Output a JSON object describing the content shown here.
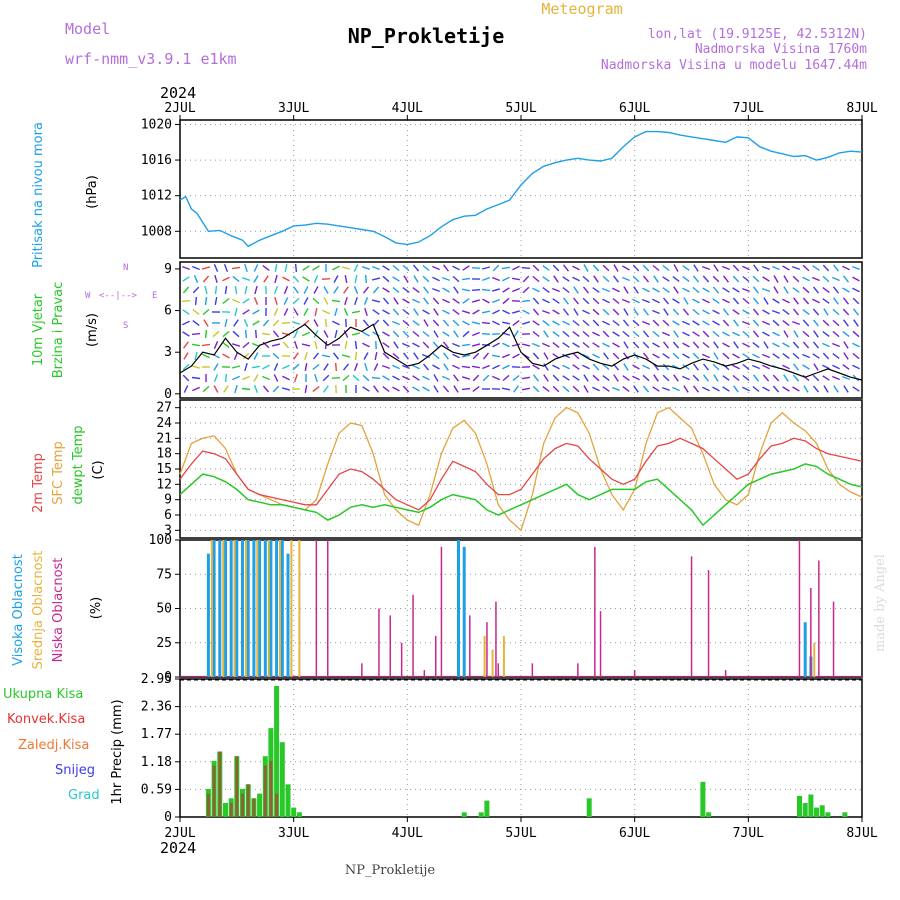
{
  "header": {
    "model_label": "Model",
    "model_name": "wrf-nmm_v3.9.1 e1km",
    "title": "NP_Prokletije",
    "meteogram_label": "Meteogram",
    "location": "lon,lat (19.9125E, 42.5312N)",
    "altitude": "Nadmorska Visina 1760m",
    "model_altitude": "Nadmorska Visina u modelu 1647.44m",
    "year_top": "2024",
    "year_bottom": "2024",
    "footer": "NP_Prokletije",
    "credit": "made by Angel"
  },
  "colors": {
    "pressure": "#1ea0e6",
    "temp2m": "#e64646",
    "sfc": "#e6a23c",
    "dew": "#28c828",
    "high_cloud": "#1ea0e6",
    "mid_cloud": "#e6b43c",
    "low_cloud": "#c8288c",
    "total_precip": "#28c828",
    "conv_precip": "#e63232",
    "frz_precip": "#f07832",
    "snow": "#3c3ce6",
    "hail": "#28c8c8",
    "wind_speed": "#000000"
  },
  "chart_data": [
    {
      "type": "line",
      "id": "pressure",
      "ylabel": "(hPa)",
      "side_labels": [
        "Pritisak na nivou mora"
      ],
      "categories": [
        "2JUL",
        "3JUL",
        "4JUL",
        "5JUL",
        "6JUL",
        "7JUL",
        "8JUL"
      ],
      "yticks": [
        "1008",
        "1012",
        "1016",
        "1020"
      ],
      "ylim": [
        1005,
        1020.5
      ],
      "grid": true,
      "series": [
        {
          "x": [
            0,
            0.05,
            0.1,
            0.15,
            0.25,
            0.35,
            0.45,
            0.55,
            0.6,
            0.7,
            0.8,
            0.9,
            1.0,
            1.1,
            1.2,
            1.3,
            1.4,
            1.5,
            1.6,
            1.7,
            1.8,
            1.9,
            2.0,
            2.1,
            2.2,
            2.3,
            2.4,
            2.5,
            2.6,
            2.7,
            2.8,
            2.9,
            3.0,
            3.1,
            3.2,
            3.3,
            3.4,
            3.5,
            3.6,
            3.7,
            3.8,
            3.9,
            4.0,
            4.1,
            4.2,
            4.3,
            4.4,
            4.5,
            4.6,
            4.7,
            4.8,
            4.9,
            5.0,
            5.1,
            5.2,
            5.3,
            5.4,
            5.5,
            5.6,
            5.7,
            5.8,
            5.9,
            6.0
          ],
          "values": [
            1011.5,
            1011.9,
            1010.5,
            1010.0,
            1008.0,
            1008.1,
            1007.5,
            1007.0,
            1006.3,
            1007.0,
            1007.5,
            1008.0,
            1008.6,
            1008.7,
            1008.9,
            1008.8,
            1008.6,
            1008.4,
            1008.2,
            1008.0,
            1007.4,
            1006.7,
            1006.5,
            1006.8,
            1007.5,
            1008.5,
            1009.3,
            1009.7,
            1009.8,
            1010.5,
            1011.0,
            1011.5,
            1013.2,
            1014.5,
            1015.3,
            1015.7,
            1016.0,
            1016.2,
            1016.0,
            1015.9,
            1016.2,
            1017.5,
            1018.6,
            1019.2,
            1019.2,
            1019.1,
            1018.8,
            1018.6,
            1018.4,
            1018.2,
            1018.0,
            1018.6,
            1018.5,
            1017.5,
            1017.0,
            1016.7,
            1016.4,
            1016.5,
            1016.0,
            1016.3,
            1016.8,
            1017.0,
            1016.9
          ]
        }
      ]
    },
    {
      "type": "line",
      "id": "wind",
      "ylabel": "(m/s)",
      "side_labels": [
        "10m Vjetar",
        "Brzina i Pravac"
      ],
      "compass": [
        "N",
        "S",
        "W",
        "E",
        "<--|-->"
      ],
      "yticks": [
        "0",
        "3",
        "6",
        "9"
      ],
      "ylim": [
        -0.3,
        9.5
      ],
      "series": [
        {
          "name": "speed",
          "x": [
            0,
            0.1,
            0.2,
            0.3,
            0.4,
            0.5,
            0.6,
            0.7,
            0.8,
            0.9,
            1.0,
            1.1,
            1.2,
            1.3,
            1.4,
            1.5,
            1.6,
            1.7,
            1.8,
            1.9,
            2.0,
            2.1,
            2.2,
            2.3,
            2.4,
            2.5,
            2.6,
            2.7,
            2.8,
            2.9,
            3.0,
            3.1,
            3.2,
            3.3,
            3.4,
            3.5,
            3.6,
            3.7,
            3.8,
            3.9,
            4.0,
            4.1,
            4.2,
            4.3,
            4.4,
            4.5,
            4.6,
            4.7,
            4.8,
            4.9,
            5.0,
            5.1,
            5.2,
            5.3,
            5.4,
            5.5,
            5.6,
            5.7,
            5.8,
            5.9,
            6.0
          ],
          "values": [
            1.5,
            2.0,
            3.0,
            2.8,
            4.0,
            3.0,
            2.5,
            3.5,
            3.8,
            4.0,
            4.5,
            5.0,
            4.2,
            3.5,
            4.0,
            4.8,
            4.5,
            5.0,
            3.0,
            2.5,
            2.0,
            2.2,
            2.8,
            3.5,
            3.0,
            2.8,
            3.0,
            3.5,
            4.0,
            4.8,
            3.0,
            2.2,
            2.0,
            2.5,
            2.8,
            3.0,
            2.5,
            2.2,
            2.0,
            2.5,
            2.8,
            2.5,
            2.0,
            2.0,
            1.8,
            2.2,
            2.5,
            2.3,
            2.0,
            2.2,
            2.5,
            2.3,
            2.0,
            1.8,
            1.5,
            1.2,
            1.5,
            1.8,
            1.5,
            1.2,
            1.0
          ]
        }
      ]
    },
    {
      "type": "line",
      "id": "temperature",
      "ylabel": "(C)",
      "side_labels": [
        "2m Temp",
        "SFC Temp",
        "dewpt Temp"
      ],
      "yticks": [
        "3",
        "6",
        "9",
        "12",
        "15",
        "18",
        "21",
        "24",
        "27"
      ],
      "ylim": [
        1.5,
        28.5
      ],
      "grid": true,
      "series": [
        {
          "name": "2m Temp",
          "x": [
            0,
            0.1,
            0.2,
            0.3,
            0.4,
            0.5,
            0.6,
            0.7,
            0.8,
            0.9,
            1.0,
            1.1,
            1.2,
            1.3,
            1.4,
            1.5,
            1.6,
            1.7,
            1.8,
            1.9,
            2.0,
            2.1,
            2.2,
            2.3,
            2.4,
            2.5,
            2.6,
            2.7,
            2.8,
            2.9,
            3.0,
            3.1,
            3.2,
            3.3,
            3.4,
            3.5,
            3.6,
            3.7,
            3.8,
            3.9,
            4.0,
            4.1,
            4.2,
            4.3,
            4.4,
            4.5,
            4.6,
            4.7,
            4.8,
            4.9,
            5.0,
            5.1,
            5.2,
            5.3,
            5.4,
            5.5,
            5.6,
            5.7,
            5.8,
            5.9,
            6.0
          ],
          "values": [
            13.0,
            16.0,
            18.5,
            18.0,
            17.0,
            14.0,
            11.0,
            10.0,
            9.5,
            9.0,
            8.5,
            8.0,
            8.0,
            11.0,
            14.0,
            15.0,
            14.5,
            13.0,
            11.0,
            9.0,
            8.0,
            7.0,
            9.0,
            13.0,
            16.5,
            15.5,
            14.5,
            12.0,
            10.0,
            10.0,
            11.0,
            14.0,
            17.0,
            19.0,
            20.0,
            19.5,
            17.0,
            15.0,
            13.0,
            12.0,
            13.0,
            16.5,
            19.5,
            20.0,
            21.0,
            20.0,
            19.0,
            17.0,
            15.0,
            13.0,
            14.0,
            17.0,
            19.5,
            20.0,
            21.0,
            20.5,
            19.0,
            18.0,
            17.5,
            17.0,
            16.5
          ]
        },
        {
          "name": "SFC Temp",
          "x": [
            0,
            0.1,
            0.2,
            0.3,
            0.4,
            0.5,
            0.6,
            0.7,
            0.8,
            0.9,
            1.0,
            1.1,
            1.2,
            1.3,
            1.4,
            1.5,
            1.6,
            1.7,
            1.8,
            1.9,
            2.0,
            2.1,
            2.2,
            2.3,
            2.4,
            2.5,
            2.6,
            2.7,
            2.8,
            2.9,
            3.0,
            3.1,
            3.2,
            3.3,
            3.4,
            3.5,
            3.6,
            3.7,
            3.8,
            3.9,
            4.0,
            4.1,
            4.2,
            4.3,
            4.4,
            4.5,
            4.6,
            4.7,
            4.8,
            4.9,
            5.0,
            5.1,
            5.2,
            5.3,
            5.4,
            5.5,
            5.6,
            5.7,
            5.8,
            5.9,
            6.0
          ],
          "values": [
            14.0,
            20.0,
            21.0,
            21.5,
            19.0,
            14.0,
            11.0,
            10.0,
            9.0,
            8.0,
            7.5,
            7.0,
            9.0,
            16.0,
            22.0,
            24.0,
            23.5,
            18.0,
            10.0,
            7.0,
            5.0,
            4.0,
            10.0,
            18.0,
            23.0,
            24.5,
            22.0,
            16.0,
            8.0,
            5.0,
            3.0,
            10.0,
            20.0,
            25.0,
            27.0,
            26.0,
            22.0,
            15.0,
            10.0,
            7.0,
            11.0,
            20.0,
            26.0,
            27.0,
            25.0,
            23.0,
            18.0,
            12.0,
            9.0,
            8.0,
            10.0,
            18.0,
            24.0,
            26.0,
            24.0,
            22.5,
            20.0,
            15.0,
            12.0,
            10.5,
            9.5
          ]
        },
        {
          "name": "dewpt Temp",
          "x": [
            0,
            0.1,
            0.2,
            0.3,
            0.4,
            0.5,
            0.6,
            0.7,
            0.8,
            0.9,
            1.0,
            1.1,
            1.2,
            1.3,
            1.4,
            1.5,
            1.6,
            1.7,
            1.8,
            1.9,
            2.0,
            2.1,
            2.2,
            2.3,
            2.4,
            2.5,
            2.6,
            2.7,
            2.8,
            2.9,
            3.0,
            3.1,
            3.2,
            3.3,
            3.4,
            3.5,
            3.6,
            3.7,
            3.8,
            3.9,
            4.0,
            4.1,
            4.2,
            4.3,
            4.4,
            4.5,
            4.6,
            4.7,
            4.8,
            4.9,
            5.0,
            5.1,
            5.2,
            5.3,
            5.4,
            5.5,
            5.6,
            5.7,
            5.8,
            5.9,
            6.0
          ],
          "values": [
            10.0,
            12.0,
            14.0,
            13.5,
            12.5,
            11.0,
            9.0,
            8.5,
            8.0,
            8.0,
            7.5,
            7.0,
            6.5,
            5.0,
            6.0,
            7.5,
            8.0,
            7.5,
            8.0,
            7.5,
            7.0,
            6.5,
            7.5,
            9.0,
            10.0,
            9.5,
            9.0,
            7.0,
            6.0,
            7.0,
            8.0,
            9.0,
            10.0,
            11.0,
            12.0,
            10.0,
            9.0,
            10.0,
            11.0,
            11.0,
            11.0,
            12.5,
            13.0,
            11.0,
            9.0,
            7.0,
            4.0,
            6.0,
            8.0,
            10.0,
            12.0,
            13.0,
            14.0,
            14.5,
            15.0,
            16.0,
            15.5,
            14.0,
            13.0,
            12.0,
            11.5
          ]
        }
      ]
    },
    {
      "type": "bar",
      "id": "clouds",
      "ylabel": "(%)",
      "side_labels": [
        "Visoka Oblacnost",
        "Srednja Oblacnost",
        "Niska Oblacnost"
      ],
      "yticks": [
        "0",
        "25",
        "50",
        "75",
        "100"
      ],
      "ylim": [
        0,
        100
      ],
      "grid": true,
      "series": [
        {
          "name": "Visoka Oblacnost",
          "x": [
            0.25,
            0.3,
            0.35,
            0.4,
            0.45,
            0.5,
            0.55,
            0.6,
            0.65,
            0.7,
            0.75,
            0.8,
            0.85,
            0.9,
            0.95,
            2.45,
            2.5,
            5.5,
            5.55
          ],
          "values": [
            90,
            100,
            100,
            100,
            100,
            100,
            100,
            100,
            100,
            100,
            100,
            100,
            100,
            100,
            90,
            100,
            95,
            40,
            15
          ]
        },
        {
          "name": "Srednja Oblacnost",
          "x": [
            0.28,
            0.38,
            0.48,
            0.58,
            0.68,
            0.78,
            0.88,
            0.98,
            1.05,
            2.68,
            2.75,
            2.85,
            5.58
          ],
          "values": [
            100,
            100,
            100,
            100,
            100,
            100,
            100,
            100,
            100,
            30,
            20,
            30,
            25
          ]
        },
        {
          "name": "Niska Oblacnost",
          "x": [
            1.2,
            1.3,
            1.6,
            1.75,
            1.85,
            1.95,
            2.05,
            2.15,
            2.25,
            2.3,
            2.55,
            2.7,
            2.78,
            2.8,
            3.1,
            3.5,
            3.65,
            3.7,
            4.0,
            4.5,
            4.65,
            4.8,
            5.45,
            5.55,
            5.62,
            5.75
          ],
          "values": [
            100,
            100,
            10,
            50,
            45,
            25,
            60,
            5,
            30,
            95,
            45,
            40,
            55,
            10,
            10,
            10,
            95,
            48,
            5,
            88,
            78,
            5,
            100,
            65,
            85,
            55
          ]
        }
      ]
    },
    {
      "type": "bar",
      "id": "precip",
      "ylabel": "1hr Precip (mm)",
      "side_labels": [
        "Ukupna Kisa",
        "Konvek.Kisa",
        "Zaledj.Kisa",
        "Snijeg",
        "Grad"
      ],
      "yticks": [
        "0",
        "0.59",
        "1.18",
        "1.77",
        "2.36",
        "2.95"
      ],
      "ylim": [
        0,
        2.95
      ],
      "grid": true,
      "series": [
        {
          "name": "Ukupna Kisa",
          "x": [
            0.25,
            0.3,
            0.35,
            0.4,
            0.45,
            0.5,
            0.55,
            0.6,
            0.65,
            0.7,
            0.75,
            0.8,
            0.85,
            0.9,
            0.95,
            1.0,
            1.05,
            2.5,
            2.65,
            2.7,
            3.6,
            4.6,
            4.65,
            5.45,
            5.5,
            5.55,
            5.6,
            5.65,
            5.7,
            5.85
          ],
          "values": [
            0.6,
            1.2,
            1.4,
            0.3,
            0.4,
            1.3,
            0.6,
            0.7,
            0.4,
            0.5,
            1.3,
            1.9,
            2.8,
            1.6,
            0.7,
            0.2,
            0.1,
            0.1,
            0.1,
            0.35,
            0.4,
            0.75,
            0.1,
            0.45,
            0.3,
            0.48,
            0.2,
            0.25,
            0.1,
            0.1
          ]
        },
        {
          "name": "Konvek.Kisa",
          "x": [
            0.25,
            0.3,
            0.35,
            0.45,
            0.5,
            0.55,
            0.6,
            0.65,
            0.75,
            0.8,
            0.85
          ],
          "values": [
            0.5,
            1.1,
            1.4,
            0.3,
            1.3,
            0.5,
            0.7,
            0.4,
            1.1,
            1.2,
            0.5
          ]
        }
      ]
    }
  ]
}
